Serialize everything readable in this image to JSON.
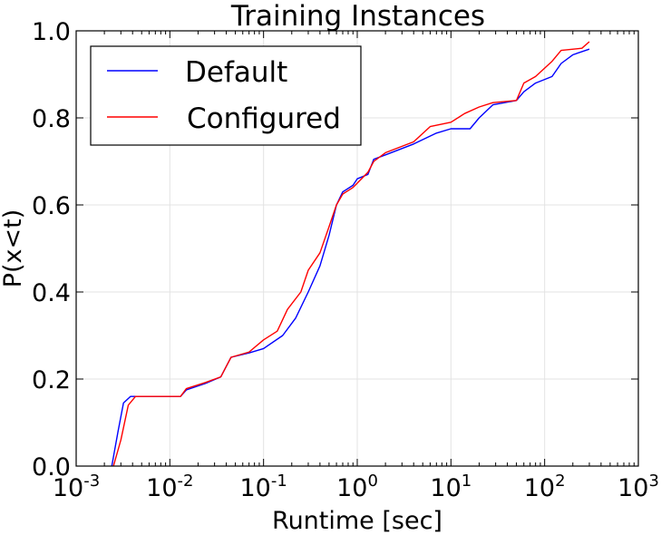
{
  "chart_data": {
    "type": "line",
    "title": "Training Instances",
    "xlabel": "Runtime [sec]",
    "ylabel": "P(x<t)",
    "xscale": "log",
    "xlim": [
      0.001,
      1000
    ],
    "ylim": [
      0.0,
      1.0
    ],
    "grid": true,
    "legend": {
      "position": "top-left"
    },
    "xticks": [
      {
        "base": "10",
        "exp": "-3",
        "value": 0.001
      },
      {
        "base": "10",
        "exp": "-2",
        "value": 0.01
      },
      {
        "base": "10",
        "exp": "-1",
        "value": 0.1
      },
      {
        "base": "10",
        "exp": "0",
        "value": 1
      },
      {
        "base": "10",
        "exp": "1",
        "value": 10
      },
      {
        "base": "10",
        "exp": "2",
        "value": 100
      },
      {
        "base": "10",
        "exp": "3",
        "value": 1000
      }
    ],
    "yticks": [
      {
        "label": "0.0",
        "value": 0.0
      },
      {
        "label": "0.2",
        "value": 0.2
      },
      {
        "label": "0.4",
        "value": 0.4
      },
      {
        "label": "0.6",
        "value": 0.6
      },
      {
        "label": "0.8",
        "value": 0.8
      },
      {
        "label": "1.0",
        "value": 1.0
      }
    ],
    "series": [
      {
        "name": "Default",
        "color": "#0000ff",
        "points": [
          [
            0.0024,
            0.0
          ],
          [
            0.0028,
            0.08
          ],
          [
            0.0032,
            0.145
          ],
          [
            0.0038,
            0.16
          ],
          [
            0.013,
            0.16
          ],
          [
            0.015,
            0.175
          ],
          [
            0.024,
            0.19
          ],
          [
            0.035,
            0.205
          ],
          [
            0.045,
            0.25
          ],
          [
            0.07,
            0.26
          ],
          [
            0.1,
            0.27
          ],
          [
            0.16,
            0.3
          ],
          [
            0.22,
            0.34
          ],
          [
            0.3,
            0.4
          ],
          [
            0.4,
            0.46
          ],
          [
            0.5,
            0.53
          ],
          [
            0.6,
            0.6
          ],
          [
            0.7,
            0.63
          ],
          [
            0.9,
            0.645
          ],
          [
            1.0,
            0.66
          ],
          [
            1.3,
            0.67
          ],
          [
            1.5,
            0.705
          ],
          [
            2.0,
            0.715
          ],
          [
            4.0,
            0.74
          ],
          [
            7.0,
            0.765
          ],
          [
            10.0,
            0.775
          ],
          [
            16.0,
            0.775
          ],
          [
            20.0,
            0.8
          ],
          [
            28.0,
            0.83
          ],
          [
            50.0,
            0.84
          ],
          [
            60.0,
            0.86
          ],
          [
            80.0,
            0.88
          ],
          [
            120.0,
            0.895
          ],
          [
            150.0,
            0.925
          ],
          [
            200.0,
            0.945
          ],
          [
            300.0,
            0.958
          ]
        ]
      },
      {
        "name": "Configured",
        "color": "#ff0000",
        "points": [
          [
            0.0025,
            0.0
          ],
          [
            0.003,
            0.06
          ],
          [
            0.0036,
            0.14
          ],
          [
            0.0043,
            0.16
          ],
          [
            0.013,
            0.16
          ],
          [
            0.015,
            0.178
          ],
          [
            0.024,
            0.192
          ],
          [
            0.035,
            0.205
          ],
          [
            0.045,
            0.25
          ],
          [
            0.07,
            0.262
          ],
          [
            0.1,
            0.29
          ],
          [
            0.14,
            0.31
          ],
          [
            0.18,
            0.36
          ],
          [
            0.25,
            0.4
          ],
          [
            0.3,
            0.45
          ],
          [
            0.4,
            0.49
          ],
          [
            0.5,
            0.55
          ],
          [
            0.6,
            0.6
          ],
          [
            0.7,
            0.625
          ],
          [
            0.9,
            0.64
          ],
          [
            1.0,
            0.65
          ],
          [
            1.3,
            0.675
          ],
          [
            1.5,
            0.7
          ],
          [
            2.0,
            0.72
          ],
          [
            4.0,
            0.745
          ],
          [
            6.0,
            0.78
          ],
          [
            10.0,
            0.79
          ],
          [
            14.0,
            0.81
          ],
          [
            20.0,
            0.825
          ],
          [
            28.0,
            0.835
          ],
          [
            50.0,
            0.84
          ],
          [
            60.0,
            0.88
          ],
          [
            80.0,
            0.895
          ],
          [
            120.0,
            0.93
          ],
          [
            150.0,
            0.955
          ],
          [
            250.0,
            0.96
          ],
          [
            300.0,
            0.975
          ]
        ]
      }
    ]
  }
}
